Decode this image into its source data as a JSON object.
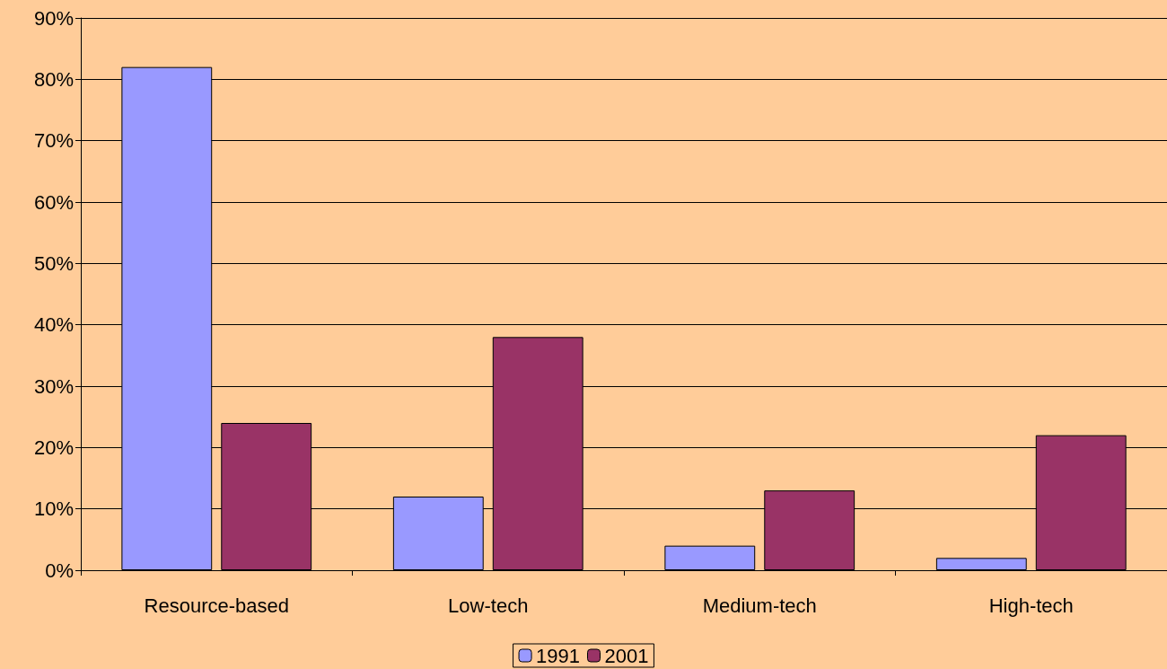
{
  "chart_data": {
    "type": "bar",
    "categories": [
      "Resource-based",
      "Low-tech",
      "Medium-tech",
      "High-tech"
    ],
    "series": [
      {
        "name": "1991",
        "color": "#9999ff",
        "values": [
          82,
          12,
          4,
          2
        ]
      },
      {
        "name": "2001",
        "color": "#993366",
        "values": [
          24,
          38,
          13,
          22
        ]
      }
    ],
    "ylim": [
      0,
      90
    ],
    "yticks": [
      {
        "value": 0,
        "label": "0%"
      },
      {
        "value": 10,
        "label": "10%"
      },
      {
        "value": 20,
        "label": "20%"
      },
      {
        "value": 30,
        "label": "30%"
      },
      {
        "value": 40,
        "label": "40%"
      },
      {
        "value": 50,
        "label": "50%"
      },
      {
        "value": 60,
        "label": "60%"
      },
      {
        "value": 70,
        "label": "70%"
      },
      {
        "value": 80,
        "label": "80%"
      },
      {
        "value": 90,
        "label": "90%"
      }
    ],
    "grid": "y",
    "legend": "bottom"
  }
}
